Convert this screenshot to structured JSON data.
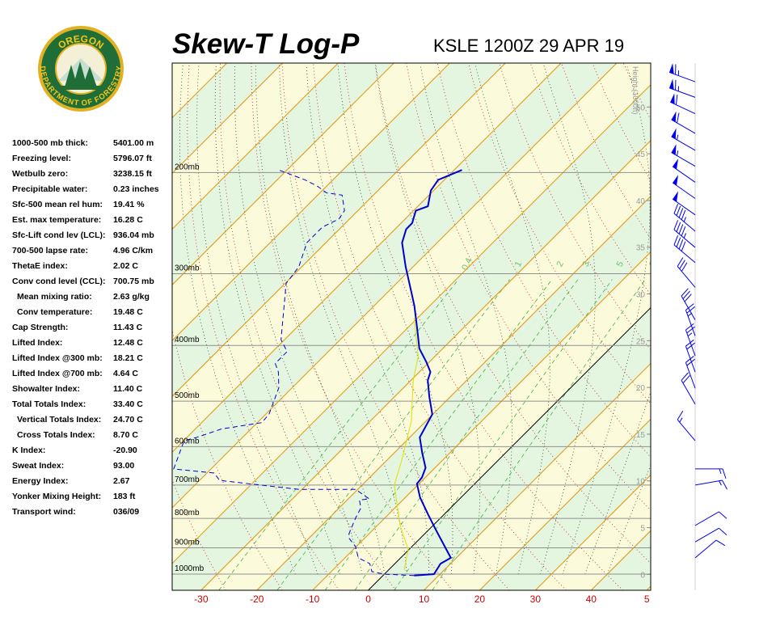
{
  "logo": {
    "top": "OREGON",
    "bottom": "DEPARTMENT OF FORESTRY"
  },
  "stats": [
    {
      "label": "1000-500 mb thick:",
      "value": "5401.00 m"
    },
    {
      "label": "Freezing level:",
      "value": "5796.07 ft"
    },
    {
      "label": "Wetbulb zero:",
      "value": "3238.15 ft"
    },
    {
      "label": "Precipitable water:",
      "value": "0.23 inches"
    },
    {
      "label": "Sfc-500 mean rel hum:",
      "value": "19.41 %"
    },
    {
      "label": "Est. max temperature:",
      "value": "16.28 C"
    },
    {
      "label": "Sfc-Lift cond lev (LCL):",
      "value": "936.04 mb"
    },
    {
      "label": "700-500 lapse rate:",
      "value": "4.96 C/km"
    },
    {
      "label": "ThetaE index:",
      "value": "2.02 C"
    },
    {
      "label": "Conv cond level (CCL):",
      "value": "700.75 mb"
    },
    {
      "label": "Mean mixing ratio:",
      "value": "2.63 g/kg"
    },
    {
      "label": "Conv temperature:",
      "value": "19.48 C"
    },
    {
      "label": "Cap Strength:",
      "value": "11.43 C"
    },
    {
      "label": "Lifted Index:",
      "value": "12.48 C"
    },
    {
      "label": "Lifted Index @300 mb:",
      "value": "18.21 C"
    },
    {
      "label": "Lifted Index @700 mb:",
      "value": "4.64 C"
    },
    {
      "label": "Showalter Index:",
      "value": "11.40 C"
    },
    {
      "label": "Total Totals Index:",
      "value": "33.40 C"
    },
    {
      "label": "Vertical Totals Index:",
      "value": "24.70 C"
    },
    {
      "label": "Cross Totals Index:",
      "value": "8.70 C"
    },
    {
      "label": "K Index:",
      "value": "-20.90"
    },
    {
      "label": "Sweat Index:",
      "value": "93.00"
    },
    {
      "label": "Energy Index:",
      "value": "2.67"
    },
    {
      "label": "Yonker Mixing Height:",
      "value": "183 ft"
    },
    {
      "label": "Transport wind:",
      "value": "036/09"
    }
  ],
  "chart_data": {
    "type": "skew-t",
    "title": "Skew-T Log-P",
    "subtitle": "KSLE 1200Z 29 APR 19",
    "xlim": [
      -35.2,
      50.7
    ],
    "xticks": [
      -30,
      -20,
      -10,
      0,
      10,
      20,
      30,
      40,
      {
        "value": 50,
        "label": "5"
      }
    ],
    "ylim": [
      1067,
      129
    ],
    "log_y": true,
    "yticks": [
      {
        "value": 200,
        "label": "200mb"
      },
      {
        "value": 300,
        "label": "300mb"
      },
      {
        "value": 400,
        "label": "400mb"
      },
      {
        "value": 500,
        "label": "500mb"
      },
      {
        "value": 600,
        "label": "600mb"
      },
      {
        "value": 700,
        "label": "700mb"
      },
      {
        "value": 800,
        "label": "800mb"
      },
      {
        "value": 900,
        "label": "900mb"
      },
      {
        "value": 1000,
        "label": "1000mb"
      }
    ],
    "y2label": "Height (1000ft)",
    "y2lim": [
      -1.7,
      54.7
    ],
    "y2ticks": [
      0,
      5,
      10,
      15,
      20,
      25,
      30,
      35,
      40,
      45,
      50
    ],
    "mixing_ratio_labels": [
      0.4,
      1,
      2,
      3,
      5,
      8
    ],
    "series": [
      {
        "color": "#0000cc",
        "dash": false,
        "x": [
          5.6,
          8.9,
          8.2,
          9.0,
          5.0,
          1.5,
          -2.9,
          -7.4,
          -10.4,
          -10.6,
          -11.7,
          -14.9,
          -18.2,
          -20.1,
          -23.8,
          -27.0,
          -28.0,
          -30.6,
          -34.2,
          -38.3,
          -42.8,
          -46.8,
          -51.3,
          -56.3,
          -58.0,
          -58.0,
          -59.6,
          -58.2,
          -60.5,
          -61.1,
          -58.6
        ],
        "values": [
          1006,
          1000,
          959,
          937,
          884,
          840,
          787,
          735,
          696,
          679,
          653,
          616,
          578,
          527,
          491,
          460,
          445,
          427,
          405,
          373,
          341,
          317,
          292,
          265,
          251,
          245,
          233,
          229,
          215,
          206,
          198
        ]
      },
      {
        "color": "#0000cc",
        "dash": true,
        "x": [
          5.6,
          -0.1,
          -2.7,
          -4.5,
          -7.6,
          -10.1,
          -12.7,
          -13.6,
          -15.3,
          -16.1,
          -17.8,
          -16.2,
          -20.4,
          -30.6,
          -41.9,
          -46.4,
          -48.7,
          -56.7,
          -59.9,
          -58.2,
          -55.3,
          -49.2,
          -49.4,
          -52.4,
          -55.3,
          -57.4,
          -57.4,
          -60.6,
          -63.2,
          -69.8,
          -70.5,
          -73.4,
          -73.4,
          -71.9,
          -72.4,
          -75.6,
          -78.8,
          -81.8,
          -85.0,
          -91.5
        ],
        "values": [
          1006,
          1000,
          990,
          959,
          937,
          896,
          867,
          851,
          797,
          767,
          743,
          740,
          712,
          712,
          694,
          687,
          667,
          656,
          586,
          578,
          559,
          545,
          527,
          474,
          445,
          430,
          410,
          391,
          367,
          312,
          292,
          265,
          249,
          241,
          233,
          219,
          217,
          211,
          206,
          198
        ]
      },
      {
        "color": "#e0e000",
        "dash": false,
        "x": [
          2.8,
          -0.1,
          -5.9,
          -14.2,
          -17.2,
          -22.6,
          -29.6,
          -33.0,
          -40.7
        ],
        "values": [
          984,
          907,
          823,
          700,
          636,
          542,
          460,
          418,
          358
        ]
      }
    ],
    "winds": [
      {
        "pressure": 139,
        "direction": 290,
        "speed": 65
      },
      {
        "pressure": 148,
        "direction": 290,
        "speed": 65
      },
      {
        "pressure": 158,
        "direction": 295,
        "speed": 60
      },
      {
        "pressure": 171,
        "direction": 300,
        "speed": 60
      },
      {
        "pressure": 183,
        "direction": 300,
        "speed": 55
      },
      {
        "pressure": 195,
        "direction": 300,
        "speed": 55
      },
      {
        "pressure": 208,
        "direction": 305,
        "speed": 50
      },
      {
        "pressure": 222,
        "direction": 305,
        "speed": 50
      },
      {
        "pressure": 237,
        "direction": 305,
        "speed": 50
      },
      {
        "pressure": 253,
        "direction": 310,
        "speed": 45
      },
      {
        "pressure": 270,
        "direction": 310,
        "speed": 45
      },
      {
        "pressure": 287,
        "direction": 310,
        "speed": 40
      },
      {
        "pressure": 317,
        "direction": 320,
        "speed": 30
      },
      {
        "pressure": 361,
        "direction": 330,
        "speed": 30
      },
      {
        "pressure": 385,
        "direction": 340,
        "speed": 25
      },
      {
        "pressure": 417,
        "direction": 340,
        "speed": 25
      },
      {
        "pressure": 445,
        "direction": 340,
        "speed": 20
      },
      {
        "pressure": 475,
        "direction": 340,
        "speed": 20
      },
      {
        "pressure": 506,
        "direction": 330,
        "speed": 20
      },
      {
        "pressure": 586,
        "direction": 320,
        "speed": 15
      },
      {
        "pressure": 656,
        "direction": 90,
        "speed": 15
      },
      {
        "pressure": 700,
        "direction": 80,
        "speed": 15
      },
      {
        "pressure": 823,
        "direction": 60,
        "speed": 10
      },
      {
        "pressure": 879,
        "direction": 60,
        "speed": 10
      },
      {
        "pressure": 937,
        "direction": 50,
        "speed": 10
      }
    ],
    "wind_color": "#0000ee"
  }
}
